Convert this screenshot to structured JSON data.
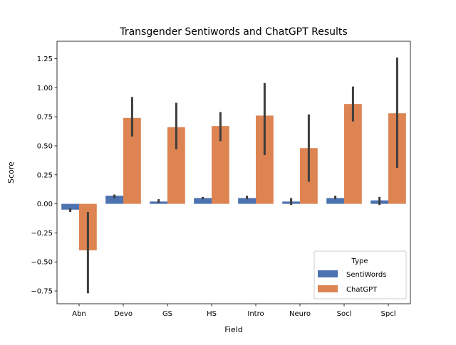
{
  "chart_data": {
    "type": "bar",
    "title": "Transgender Sentiwords and ChatGPT Results",
    "xlabel": "Field",
    "ylabel": "Score",
    "categories": [
      "Abn",
      "Devo",
      "GS",
      "HS",
      "Intro",
      "Neuro",
      "Socl",
      "Spcl"
    ],
    "ylim": [
      -0.86,
      1.4
    ],
    "yticks": [
      -0.75,
      -0.5,
      -0.25,
      0.0,
      0.25,
      0.5,
      0.75,
      1.0,
      1.25
    ],
    "ytick_labels": [
      "−0.75",
      "−0.50",
      "−0.25",
      "0.00",
      "0.25",
      "0.50",
      "0.75",
      "1.00",
      "1.25"
    ],
    "grid": false,
    "legend": {
      "title": "Type",
      "placement": "lower-right",
      "entries": [
        "SentiWords",
        "ChatGPT"
      ]
    },
    "series": [
      {
        "name": "SentiWords",
        "color": "#4c72b0",
        "values": [
          -0.05,
          0.07,
          0.02,
          0.05,
          0.05,
          0.02,
          0.05,
          0.03
        ],
        "ci_low": [
          -0.07,
          0.05,
          0.01,
          0.04,
          0.04,
          -0.01,
          0.04,
          -0.01
        ],
        "ci_high": [
          -0.04,
          0.08,
          0.04,
          0.06,
          0.07,
          0.05,
          0.07,
          0.06
        ]
      },
      {
        "name": "ChatGPT",
        "color": "#dd8452",
        "values": [
          -0.4,
          0.74,
          0.66,
          0.67,
          0.76,
          0.48,
          0.86,
          0.78
        ],
        "ci_low": [
          -0.77,
          0.58,
          0.47,
          0.54,
          0.42,
          0.19,
          0.71,
          0.31
        ],
        "ci_high": [
          -0.07,
          0.92,
          0.87,
          0.79,
          1.04,
          0.77,
          1.01,
          1.26
        ]
      }
    ]
  }
}
